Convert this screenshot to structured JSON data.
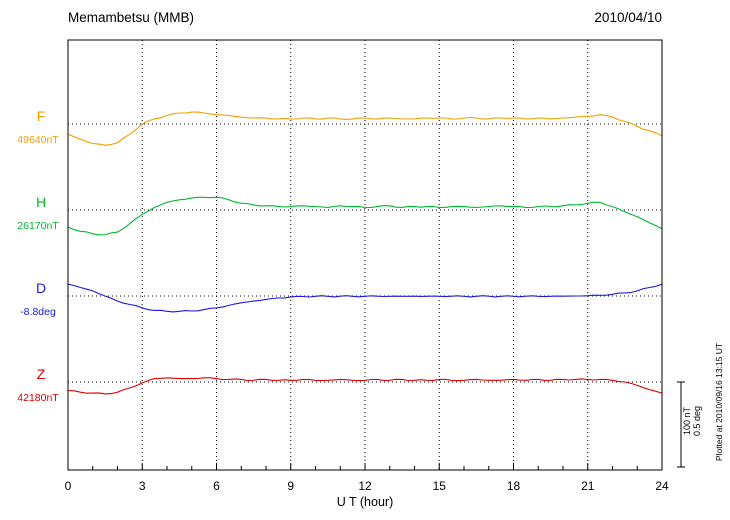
{
  "header": {
    "title": "Memambetsu (MMB)",
    "date": "2010/04/10"
  },
  "footer_note": "Plotted at 2010/09/16 13:15 UT",
  "chart_data": {
    "type": "line",
    "title": "Memambetsu (MMB)",
    "date": "2010/04/10",
    "xlabel": "U T (hour)",
    "x_range": [
      0,
      24
    ],
    "x_major_ticks": [
      0,
      3,
      6,
      9,
      12,
      15,
      18,
      21,
      24
    ],
    "grid": "dotted vertical lines every 3 hours; dotted horizontal baseline per series",
    "legend_position": "left-of-axis labels",
    "scale_bar": {
      "label_nt": "100 nT",
      "label_deg": "0.5 deg",
      "nT_per_bar": 100,
      "deg_per_bar": 0.5
    },
    "x_hours": [
      0,
      0.5,
      1,
      1.5,
      2,
      2.5,
      3,
      3.5,
      4,
      4.5,
      5,
      5.5,
      6,
      6.5,
      7,
      7.5,
      8,
      8.5,
      9,
      9.5,
      10,
      10.5,
      11,
      11.5,
      12,
      12.5,
      13,
      13.5,
      14,
      14.5,
      15,
      15.5,
      16,
      16.5,
      17,
      17.5,
      18,
      18.5,
      19,
      19.5,
      20,
      20.5,
      21,
      21.5,
      22,
      22.5,
      23,
      23.5,
      24
    ],
    "series": [
      {
        "name": "F",
        "unit": "nT",
        "baseline_label": "49640nT",
        "baseline_value": 49640,
        "color": "#f0a000",
        "dev": [
          -12,
          -18,
          -23,
          -25,
          -22,
          -12,
          0,
          6,
          10,
          13,
          14,
          13,
          11,
          10,
          8,
          7,
          7,
          6,
          6,
          7,
          6,
          7,
          6,
          6,
          7,
          6,
          7,
          6,
          6,
          7,
          7,
          6,
          7,
          7,
          6,
          7,
          7,
          6,
          7,
          6,
          7,
          8,
          9,
          11,
          8,
          3,
          -3,
          -8,
          -14
        ]
      },
      {
        "name": "H",
        "unit": "nT",
        "baseline_label": "26170nT",
        "baseline_value": 26170,
        "color": "#00b830",
        "dev": [
          -20,
          -25,
          -28,
          -29,
          -26,
          -16,
          -5,
          3,
          9,
          12,
          14,
          15,
          15,
          12,
          8,
          6,
          5,
          4,
          4,
          5,
          4,
          3,
          5,
          4,
          3,
          4,
          5,
          3,
          4,
          4,
          3,
          4,
          4,
          3,
          4,
          5,
          4,
          3,
          4,
          4,
          5,
          6,
          8,
          9,
          4,
          -2,
          -8,
          -15,
          -22
        ]
      },
      {
        "name": "D",
        "unit": "deg",
        "baseline_label": "-8.8deg",
        "baseline_value": -8.8,
        "color": "#1a1ae0",
        "dev": [
          0.07,
          0.05,
          0.03,
          0,
          -0.03,
          -0.05,
          -0.07,
          -0.085,
          -0.09,
          -0.09,
          -0.088,
          -0.08,
          -0.07,
          -0.055,
          -0.04,
          -0.03,
          -0.02,
          -0.012,
          -0.006,
          -0.003,
          -0.002,
          -0.002,
          -0.001,
          -0.002,
          -0.002,
          -0.001,
          -0.002,
          -0.002,
          -0.001,
          -0.002,
          -0.002,
          -0.001,
          -0.002,
          -0.002,
          -0.001,
          -0.002,
          -0.002,
          -0.001,
          -0.002,
          -0.002,
          -0.001,
          0,
          0.002,
          0.004,
          0.01,
          0.018,
          0.03,
          0.05,
          0.07
        ]
      },
      {
        "name": "Z",
        "unit": "nT",
        "baseline_label": "42180nT",
        "baseline_value": 42180,
        "color": "#dd0000",
        "dev": [
          -10,
          -12,
          -13,
          -14,
          -12,
          -7,
          -1,
          4,
          5,
          4,
          4,
          5,
          4,
          3,
          3,
          2,
          3,
          2,
          2,
          3,
          2,
          2,
          3,
          2,
          2,
          3,
          2,
          3,
          2,
          2,
          3,
          2,
          2,
          3,
          2,
          2,
          3,
          2,
          3,
          2,
          3,
          3,
          3,
          3,
          2,
          0,
          -4,
          -9,
          -13
        ]
      }
    ]
  }
}
